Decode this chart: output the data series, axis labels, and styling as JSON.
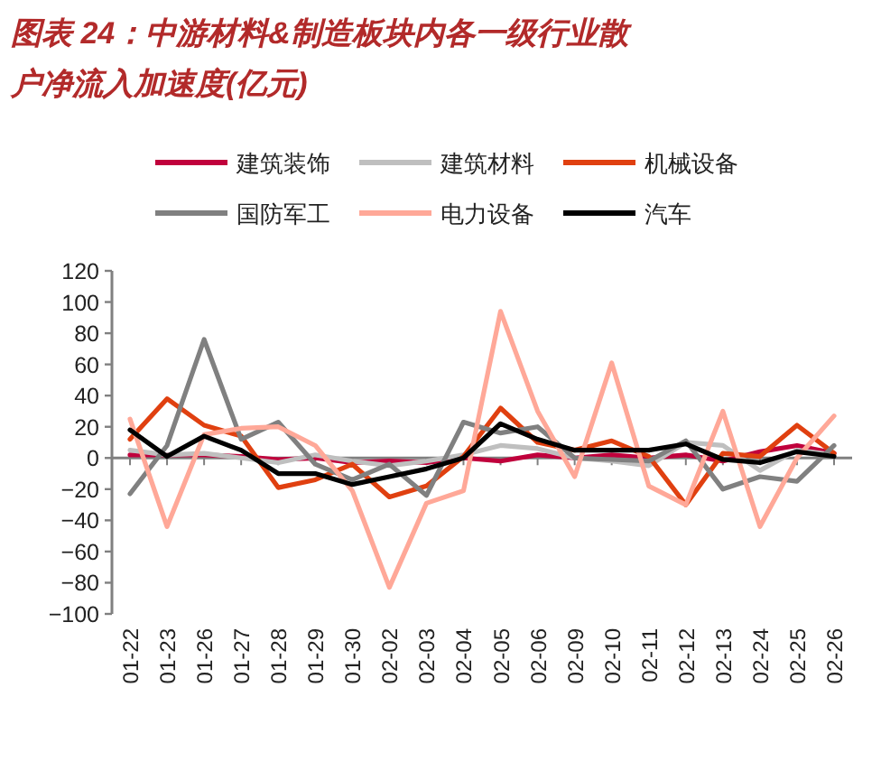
{
  "chart_data": {
    "type": "line",
    "title": "图表 24：中游材料&制造板块内各一级行业散户净流入加速度(亿元)",
    "categories": [
      "01-22",
      "01-23",
      "01-26",
      "01-27",
      "01-28",
      "01-29",
      "01-30",
      "02-02",
      "02-03",
      "02-04",
      "02-05",
      "02-06",
      "02-09",
      "02-10",
      "02-11",
      "02-12",
      "02-13",
      "02-24",
      "02-25",
      "02-26"
    ],
    "ylim": [
      -100,
      120
    ],
    "yticks": [
      -100,
      -80,
      -60,
      -40,
      -20,
      0,
      20,
      40,
      60,
      80,
      100,
      120
    ],
    "legend": "top",
    "series": [
      {
        "name": "建筑装饰",
        "color": "#c0003c",
        "values": [
          2,
          2,
          2,
          1,
          -1,
          0,
          -3,
          -2,
          -3,
          0,
          -2,
          2,
          0,
          2,
          0,
          2,
          -2,
          4,
          8,
          3
        ]
      },
      {
        "name": "建筑材料",
        "color": "#bfbfbf",
        "values": [
          5,
          2,
          3,
          0,
          -3,
          2,
          -2,
          -5,
          -2,
          2,
          8,
          6,
          0,
          -2,
          -5,
          10,
          8,
          -8,
          5,
          2
        ]
      },
      {
        "name": "机械设备",
        "color": "#e04010",
        "values": [
          12,
          38,
          21,
          14,
          -19,
          -14,
          -4,
          -25,
          -18,
          1,
          32,
          10,
          5,
          11,
          1,
          -30,
          3,
          1,
          21,
          3
        ]
      },
      {
        "name": "国防军工",
        "color": "#808080",
        "values": [
          -23,
          8,
          76,
          12,
          23,
          -4,
          -14,
          -4,
          -24,
          23,
          16,
          20,
          0,
          -1,
          -2,
          11,
          -20,
          -12,
          -15,
          8
        ]
      },
      {
        "name": "电力设备",
        "color": "#ffa898",
        "values": [
          25,
          -44,
          15,
          19,
          20,
          8,
          -21,
          -83,
          -29,
          -21,
          94,
          30,
          -12,
          61,
          -18,
          -30,
          30,
          -44,
          0,
          27
        ]
      },
      {
        "name": "汽车",
        "color": "#000000",
        "values": [
          18,
          1,
          14,
          5,
          -10,
          -10,
          -17,
          -12,
          -7,
          0,
          22,
          12,
          5,
          5,
          5,
          9,
          -1,
          -3,
          4,
          1
        ]
      }
    ]
  }
}
